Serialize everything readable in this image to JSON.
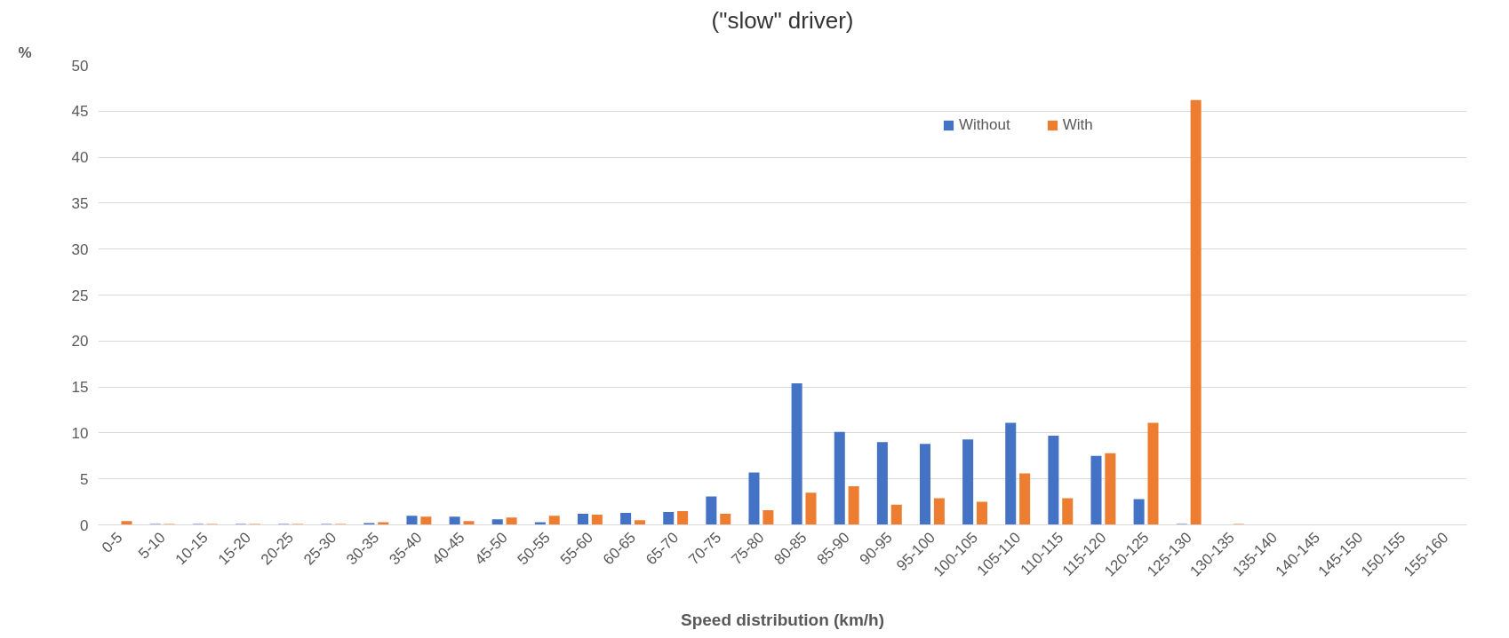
{
  "chart_data": {
    "type": "bar",
    "title": "(\"slow\" driver)",
    "xlabel": "Speed distribution (km/h)",
    "ylabel": "%",
    "categories": [
      "0-5",
      "5-10",
      "10-15",
      "15-20",
      "20-25",
      "25-30",
      "30-35",
      "35-40",
      "40-45",
      "45-50",
      "50-55",
      "55-60",
      "60-65",
      "65-70",
      "70-75",
      "75-80",
      "80-85",
      "85-90",
      "90-95",
      "95-100",
      "100-105",
      "105-110",
      "110-115",
      "115-120",
      "120-125",
      "125-130",
      "130-135",
      "135-140",
      "140-145",
      "145-150",
      "150-155",
      "155-160"
    ],
    "series": [
      {
        "name": "Without",
        "color": "#4472c4",
        "values": [
          0,
          0.1,
          0.1,
          0.1,
          0.1,
          0.1,
          0.2,
          1.0,
          0.9,
          0.6,
          0.3,
          1.2,
          1.3,
          1.4,
          3.1,
          5.7,
          15.4,
          10.1,
          9.0,
          8.8,
          9.3,
          11.1,
          9.7,
          7.5,
          2.8,
          0.1,
          0,
          0,
          0,
          0,
          0,
          0
        ]
      },
      {
        "name": "With",
        "color": "#ed7d31",
        "values": [
          0.4,
          0.1,
          0.1,
          0.1,
          0.1,
          0.1,
          0.3,
          0.9,
          0.4,
          0.8,
          1.0,
          1.1,
          0.5,
          1.5,
          1.2,
          1.6,
          3.5,
          4.2,
          2.2,
          2.9,
          2.5,
          5.6,
          2.9,
          7.8,
          11.1,
          46.2,
          0.1,
          0,
          0,
          0,
          0,
          0
        ]
      }
    ],
    "ylim": [
      0,
      50
    ],
    "yticks": [
      0,
      5,
      10,
      15,
      20,
      25,
      30,
      35,
      40,
      45,
      50
    ],
    "grid": "y",
    "legend": "center"
  }
}
